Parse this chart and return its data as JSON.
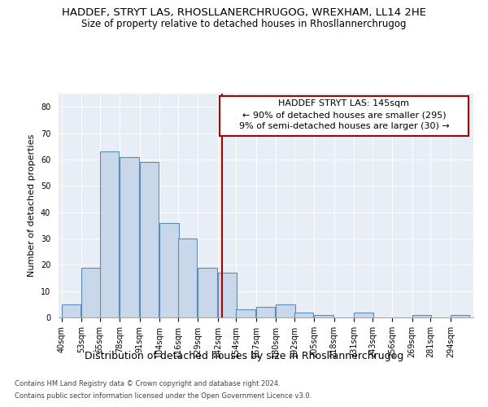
{
  "title1": "HADDEF, STRYT LAS, RHOSLLANERCHRUGOG, WREXHAM, LL14 2HE",
  "title2": "Size of property relative to detached houses in Rhosllannerchrugog",
  "xlabel": "Distribution of detached houses by size in Rhosllannerchrugog",
  "ylabel": "Number of detached properties",
  "footer1": "Contains HM Land Registry data © Crown copyright and database right 2024.",
  "footer2": "Contains public sector information licensed under the Open Government Licence v3.0.",
  "annotation_title": "HADDEF STRYT LAS: 145sqm",
  "annotation_line1": "← 90% of detached houses are smaller (295)",
  "annotation_line2": "9% of semi-detached houses are larger (30) →",
  "property_size": 145,
  "bar_color": "#c8d8ea",
  "bar_edge_color": "#5b8db8",
  "vline_color": "#aa0000",
  "annotation_box_edgecolor": "#aa0000",
  "plot_bg_color": "#e8eef5",
  "grid_color": "#ffffff",
  "bins": [
    40,
    53,
    65,
    78,
    91,
    104,
    116,
    129,
    142,
    154,
    167,
    180,
    192,
    205,
    218,
    231,
    243,
    256,
    269,
    281,
    294
  ],
  "counts": [
    5,
    19,
    63,
    61,
    59,
    36,
    30,
    19,
    17,
    3,
    4,
    5,
    2,
    1,
    0,
    2,
    0,
    0,
    1,
    0,
    1
  ],
  "ylim": [
    0,
    85
  ],
  "yticks": [
    0,
    10,
    20,
    30,
    40,
    50,
    60,
    70,
    80
  ],
  "title1_fontsize": 9.5,
  "title2_fontsize": 8.5,
  "ylabel_fontsize": 8,
  "xlabel_fontsize": 9,
  "tick_fontsize": 7,
  "footer_fontsize": 6,
  "annot_fontsize": 8
}
